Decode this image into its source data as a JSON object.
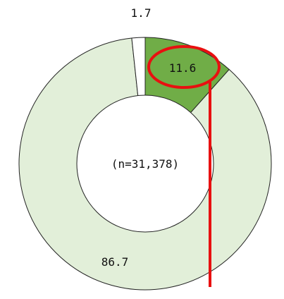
{
  "chart_data": {
    "type": "pie",
    "variant": "donut",
    "center_text": "(n=31,378)",
    "slices": [
      {
        "label": "11.6",
        "value": 11.6,
        "color": "#70ad47"
      },
      {
        "label": "86.7",
        "value": 86.7,
        "color": "#e2efd9"
      },
      {
        "label": "1.7",
        "value": 1.7,
        "color": "#ffffff"
      }
    ],
    "annotation": {
      "highlight": "11.6",
      "color": "#e81010"
    }
  }
}
